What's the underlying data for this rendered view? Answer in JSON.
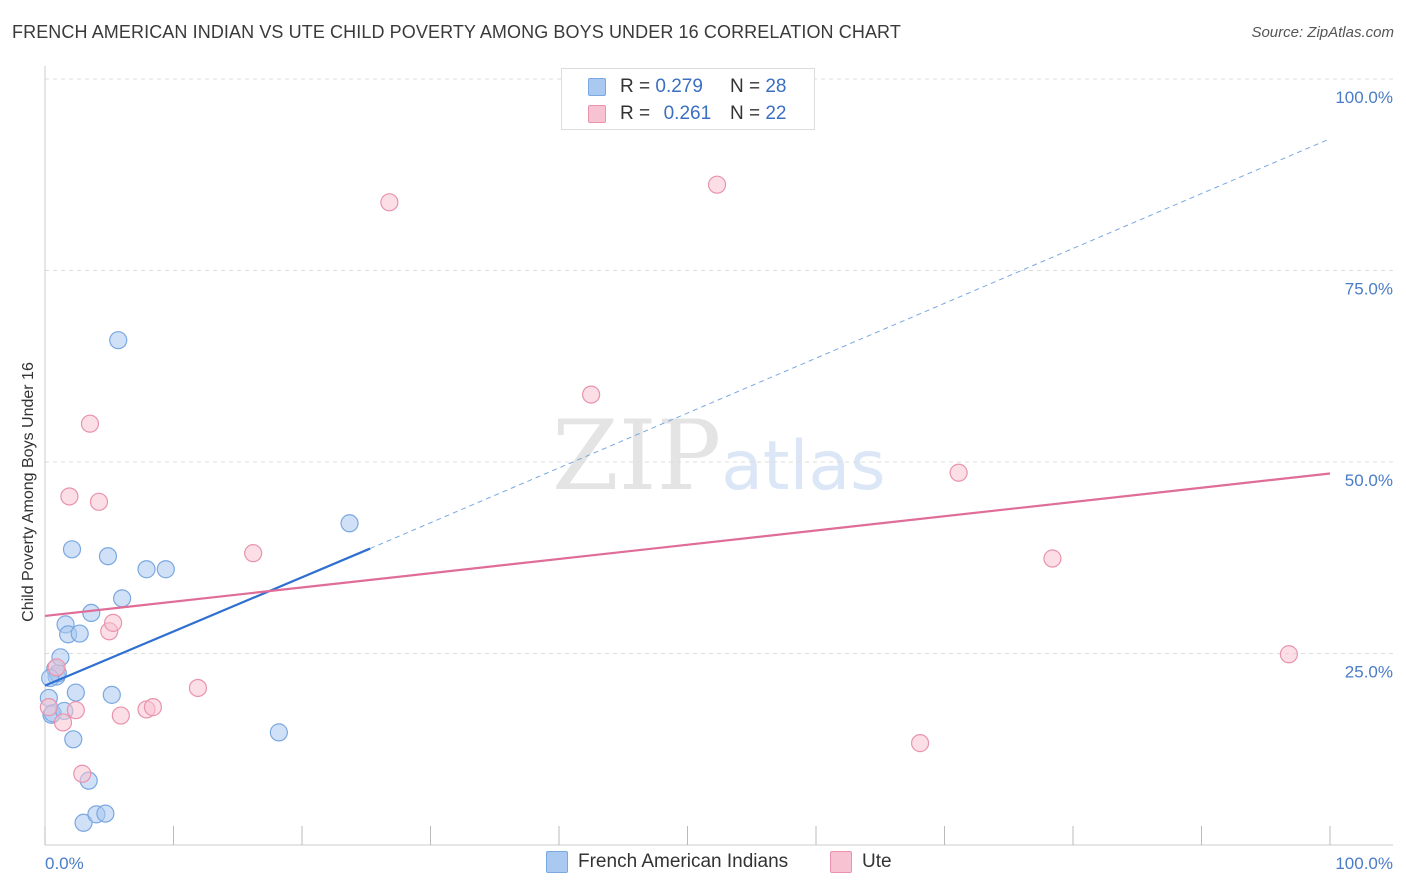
{
  "title": "FRENCH AMERICAN INDIAN VS UTE CHILD POVERTY AMONG BOYS UNDER 16 CORRELATION CHART",
  "source": "Source: ZipAtlas.com",
  "watermark": {
    "zip": "ZIP",
    "atlas": "atlas"
  },
  "legend_top": {
    "rows": [
      {
        "r_label": "R =",
        "r_value": "0.279",
        "n_label": "N =",
        "n_value": "28",
        "color": "#a9c9f0",
        "border": "#7aa8e0"
      },
      {
        "r_label": "R =",
        "r_value": "0.261",
        "n_label": "N =",
        "n_value": "22",
        "color": "#f7c3d2",
        "border": "#e993ad"
      }
    ]
  },
  "legend_bottom": {
    "items": [
      {
        "label": "French American Indians",
        "color": "#a9c9f0",
        "border": "#7aa8e0"
      },
      {
        "label": "Ute",
        "color": "#f7c3d2",
        "border": "#e993ad"
      }
    ]
  },
  "chart_data": {
    "type": "scatter",
    "title": "FRENCH AMERICAN INDIAN VS UTE CHILD POVERTY AMONG BOYS UNDER 16 CORRELATION CHART",
    "xlabel": "",
    "ylabel": "Child Poverty Among Boys Under 16",
    "xlim": [
      0,
      100
    ],
    "ylim": [
      0,
      100
    ],
    "x_tick_labels": [
      "0.0%",
      "100.0%"
    ],
    "y_ticks": [
      25,
      50,
      75,
      100
    ],
    "y_tick_labels": [
      "25.0%",
      "50.0%",
      "75.0%",
      "100.0%"
    ],
    "grid": true,
    "series": [
      {
        "name": "French American Indians",
        "color": "#7aa8e0",
        "fill": "#a9c9f0",
        "points": [
          [
            0.3,
            19.2
          ],
          [
            0.5,
            17.0
          ],
          [
            0.6,
            17.2
          ],
          [
            0.8,
            23.0
          ],
          [
            0.9,
            22.0
          ],
          [
            1.0,
            22.4
          ],
          [
            1.2,
            24.5
          ],
          [
            1.5,
            17.5
          ],
          [
            1.6,
            28.8
          ],
          [
            1.8,
            27.5
          ],
          [
            2.1,
            38.6
          ],
          [
            2.2,
            13.8
          ],
          [
            2.4,
            19.9
          ],
          [
            2.7,
            27.6
          ],
          [
            3.0,
            2.9
          ],
          [
            3.4,
            8.4
          ],
          [
            3.6,
            30.3
          ],
          [
            4.0,
            4.0
          ],
          [
            4.7,
            4.1
          ],
          [
            4.9,
            37.7
          ],
          [
            5.2,
            19.6
          ],
          [
            5.7,
            65.9
          ],
          [
            6.0,
            32.2
          ],
          [
            7.9,
            36.0
          ],
          [
            9.4,
            36.0
          ],
          [
            18.2,
            14.7
          ],
          [
            23.7,
            42.0
          ],
          [
            0.4,
            21.8
          ]
        ],
        "trend": {
          "x0": 0,
          "y0": 20.8,
          "x1": 25.3,
          "y1": 38.7,
          "dashed_to_x": 100,
          "dashed_to_y": 92.2
        }
      },
      {
        "name": "Ute",
        "color": "#e993ad",
        "fill": "#f7c3d2",
        "points": [
          [
            0.3,
            18.0
          ],
          [
            0.9,
            23.2
          ],
          [
            1.4,
            16.0
          ],
          [
            1.9,
            45.5
          ],
          [
            2.4,
            17.6
          ],
          [
            2.9,
            9.3
          ],
          [
            3.5,
            55.0
          ],
          [
            4.2,
            44.8
          ],
          [
            5.0,
            27.9
          ],
          [
            5.3,
            29.0
          ],
          [
            5.9,
            16.9
          ],
          [
            7.9,
            17.7
          ],
          [
            8.4,
            18.0
          ],
          [
            11.9,
            20.5
          ],
          [
            16.2,
            38.1
          ],
          [
            26.8,
            83.9
          ],
          [
            42.5,
            58.8
          ],
          [
            52.3,
            86.2
          ],
          [
            68.1,
            13.3
          ],
          [
            71.1,
            48.6
          ],
          [
            78.4,
            37.4
          ],
          [
            96.8,
            24.9
          ]
        ],
        "trend": {
          "x0": 0,
          "y0": 29.9,
          "x1": 100,
          "y1": 48.5
        }
      }
    ]
  }
}
